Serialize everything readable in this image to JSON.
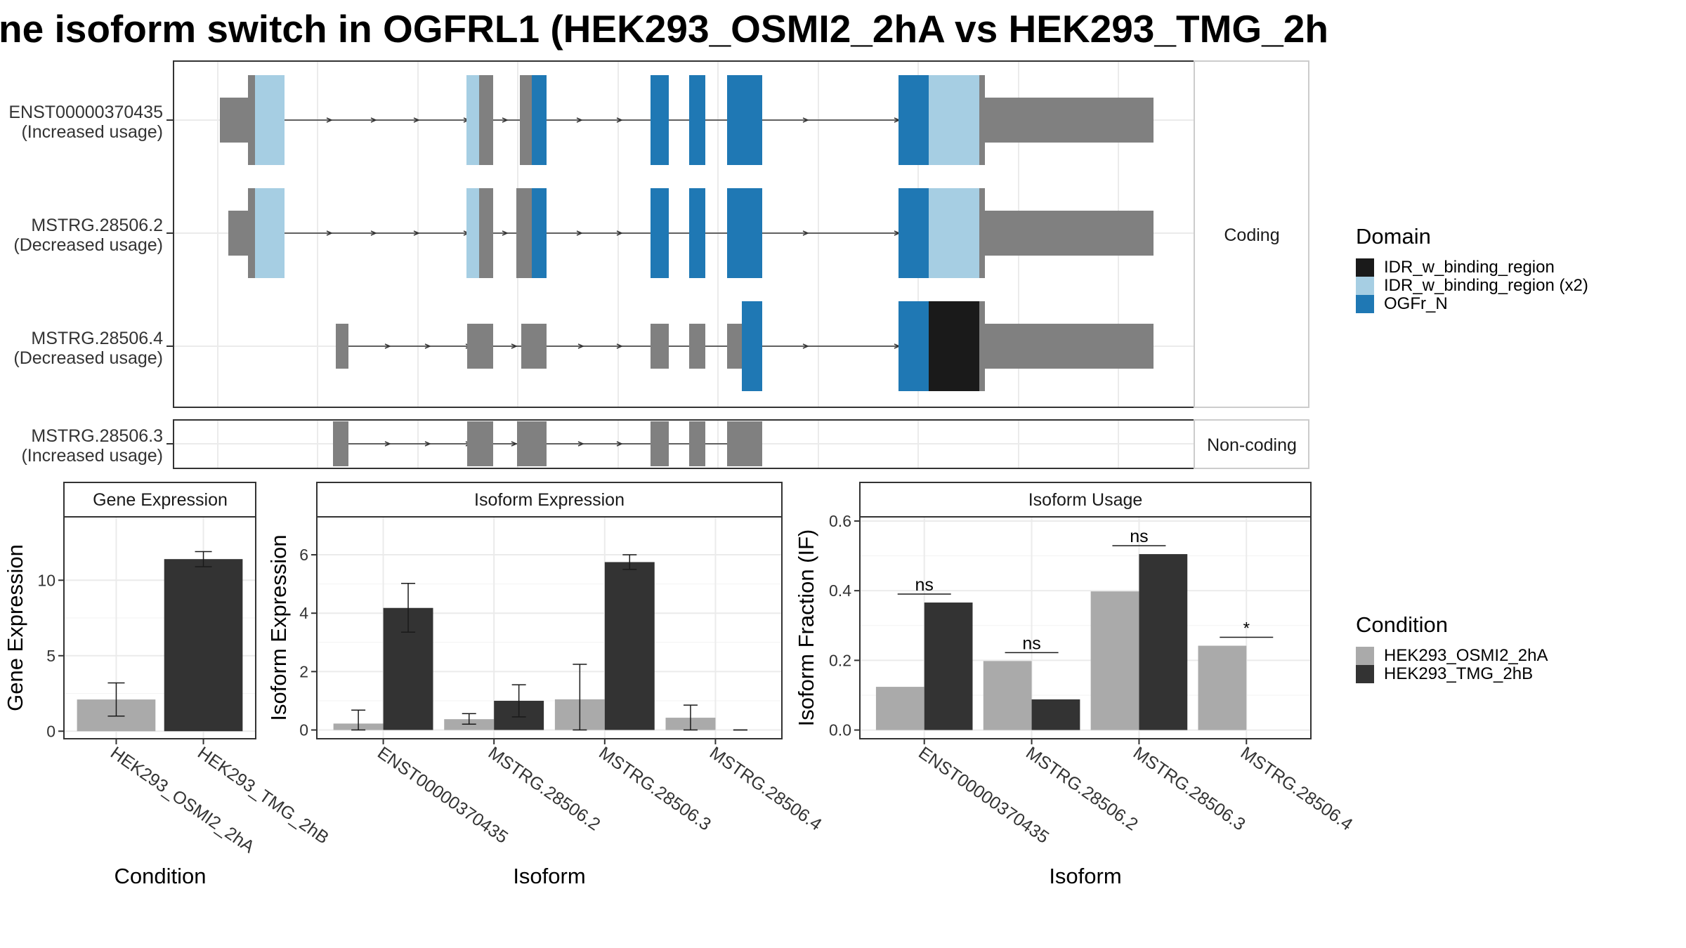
{
  "title": "ne isoform switch in OGFRL1 (HEK293_OSMI2_2hA vs HEK293_TMG_2h",
  "colors": {
    "exon_plain": "#808080",
    "IDR_w_binding_region": "#1a1a1a",
    "IDR_w_binding_region_x2": "#a6cee3",
    "OGFr_N": "#1f78b4",
    "cond_A": "#aaaaaa",
    "cond_B": "#333333"
  },
  "structure": {
    "transcripts": [
      {
        "name": "ENST00000370435",
        "note": "(Increased usage)",
        "group": "Coding"
      },
      {
        "name": "MSTRG.28506.2",
        "note": "(Decreased usage)",
        "group": "Coding"
      },
      {
        "name": "MSTRG.28506.4",
        "note": "(Decreased usage)",
        "group": "Coding"
      },
      {
        "name": "MSTRG.28506.3",
        "note": "(Increased usage)",
        "group": "Non-coding"
      }
    ],
    "groups": [
      "Coding",
      "Non-coding"
    ]
  },
  "legend_domain": {
    "title": "Domain",
    "items": [
      {
        "label": "IDR_w_binding_region",
        "color": "#1a1a1a"
      },
      {
        "label": "IDR_w_binding_region (x2)",
        "color": "#a6cee3"
      },
      {
        "label": "OGFr_N",
        "color": "#1f78b4"
      }
    ]
  },
  "legend_condition": {
    "title": "Condition",
    "items": [
      {
        "label": "HEK293_OSMI2_2hA",
        "color": "#aaaaaa"
      },
      {
        "label": "HEK293_TMG_2hB",
        "color": "#333333"
      }
    ]
  },
  "chart_data": [
    {
      "type": "bar",
      "title": "Gene Expression",
      "xlabel": "Condition",
      "ylabel": "Gene Expression",
      "categories": [
        "HEK293_OSMI2_2hA",
        "HEK293_TMG_2hB"
      ],
      "values": [
        2.1,
        11.4
      ],
      "err_low": [
        1.0,
        10.9
      ],
      "err_high": [
        3.2,
        11.9
      ],
      "ylim": [
        -0.5,
        14.2
      ],
      "yticks": [
        0,
        5,
        10
      ],
      "grid": true
    },
    {
      "type": "bar",
      "title": "Isoform Expression",
      "xlabel": "Isoform",
      "ylabel": "Isoform Expression",
      "categories": [
        "ENST00000370435",
        "MSTRG.28506.2",
        "MSTRG.28506.3",
        "MSTRG.28506.4"
      ],
      "series": [
        {
          "name": "HEK293_OSMI2_2hA",
          "values": [
            0.22,
            0.37,
            1.05,
            0.42
          ],
          "err_low": [
            0.0,
            0.2,
            0.0,
            0.0
          ],
          "err_high": [
            0.68,
            0.56,
            2.25,
            0.85
          ]
        },
        {
          "name": "HEK293_TMG_2hB",
          "values": [
            4.18,
            1.0,
            5.75,
            0.0
          ],
          "err_low": [
            3.35,
            0.45,
            5.5,
            0.0
          ],
          "err_high": [
            5.02,
            1.55,
            6.0,
            0.0
          ]
        }
      ],
      "ylim": [
        -0.3,
        7.3
      ],
      "yticks": [
        0,
        2,
        4,
        6
      ],
      "grid": true
    },
    {
      "type": "bar",
      "title": "Isoform Usage",
      "xlabel": "Isoform",
      "ylabel": "Isoform Fraction (IF)",
      "categories": [
        "ENST00000370435",
        "MSTRG.28506.2",
        "MSTRG.28506.3",
        "MSTRG.28506.4"
      ],
      "series": [
        {
          "name": "HEK293_OSMI2_2hA",
          "values": [
            0.124,
            0.198,
            0.398,
            0.242
          ]
        },
        {
          "name": "HEK293_TMG_2hB",
          "values": [
            0.366,
            0.088,
            0.505,
            0.0
          ]
        }
      ],
      "significance": [
        "ns",
        "ns",
        "ns",
        "*"
      ],
      "ylim": [
        -0.025,
        0.612
      ],
      "yticks": [
        0.0,
        0.2,
        0.4,
        0.6
      ],
      "ytick_labels": [
        "0.0",
        "0.2",
        "0.4",
        "0.6"
      ],
      "grid": true
    }
  ]
}
